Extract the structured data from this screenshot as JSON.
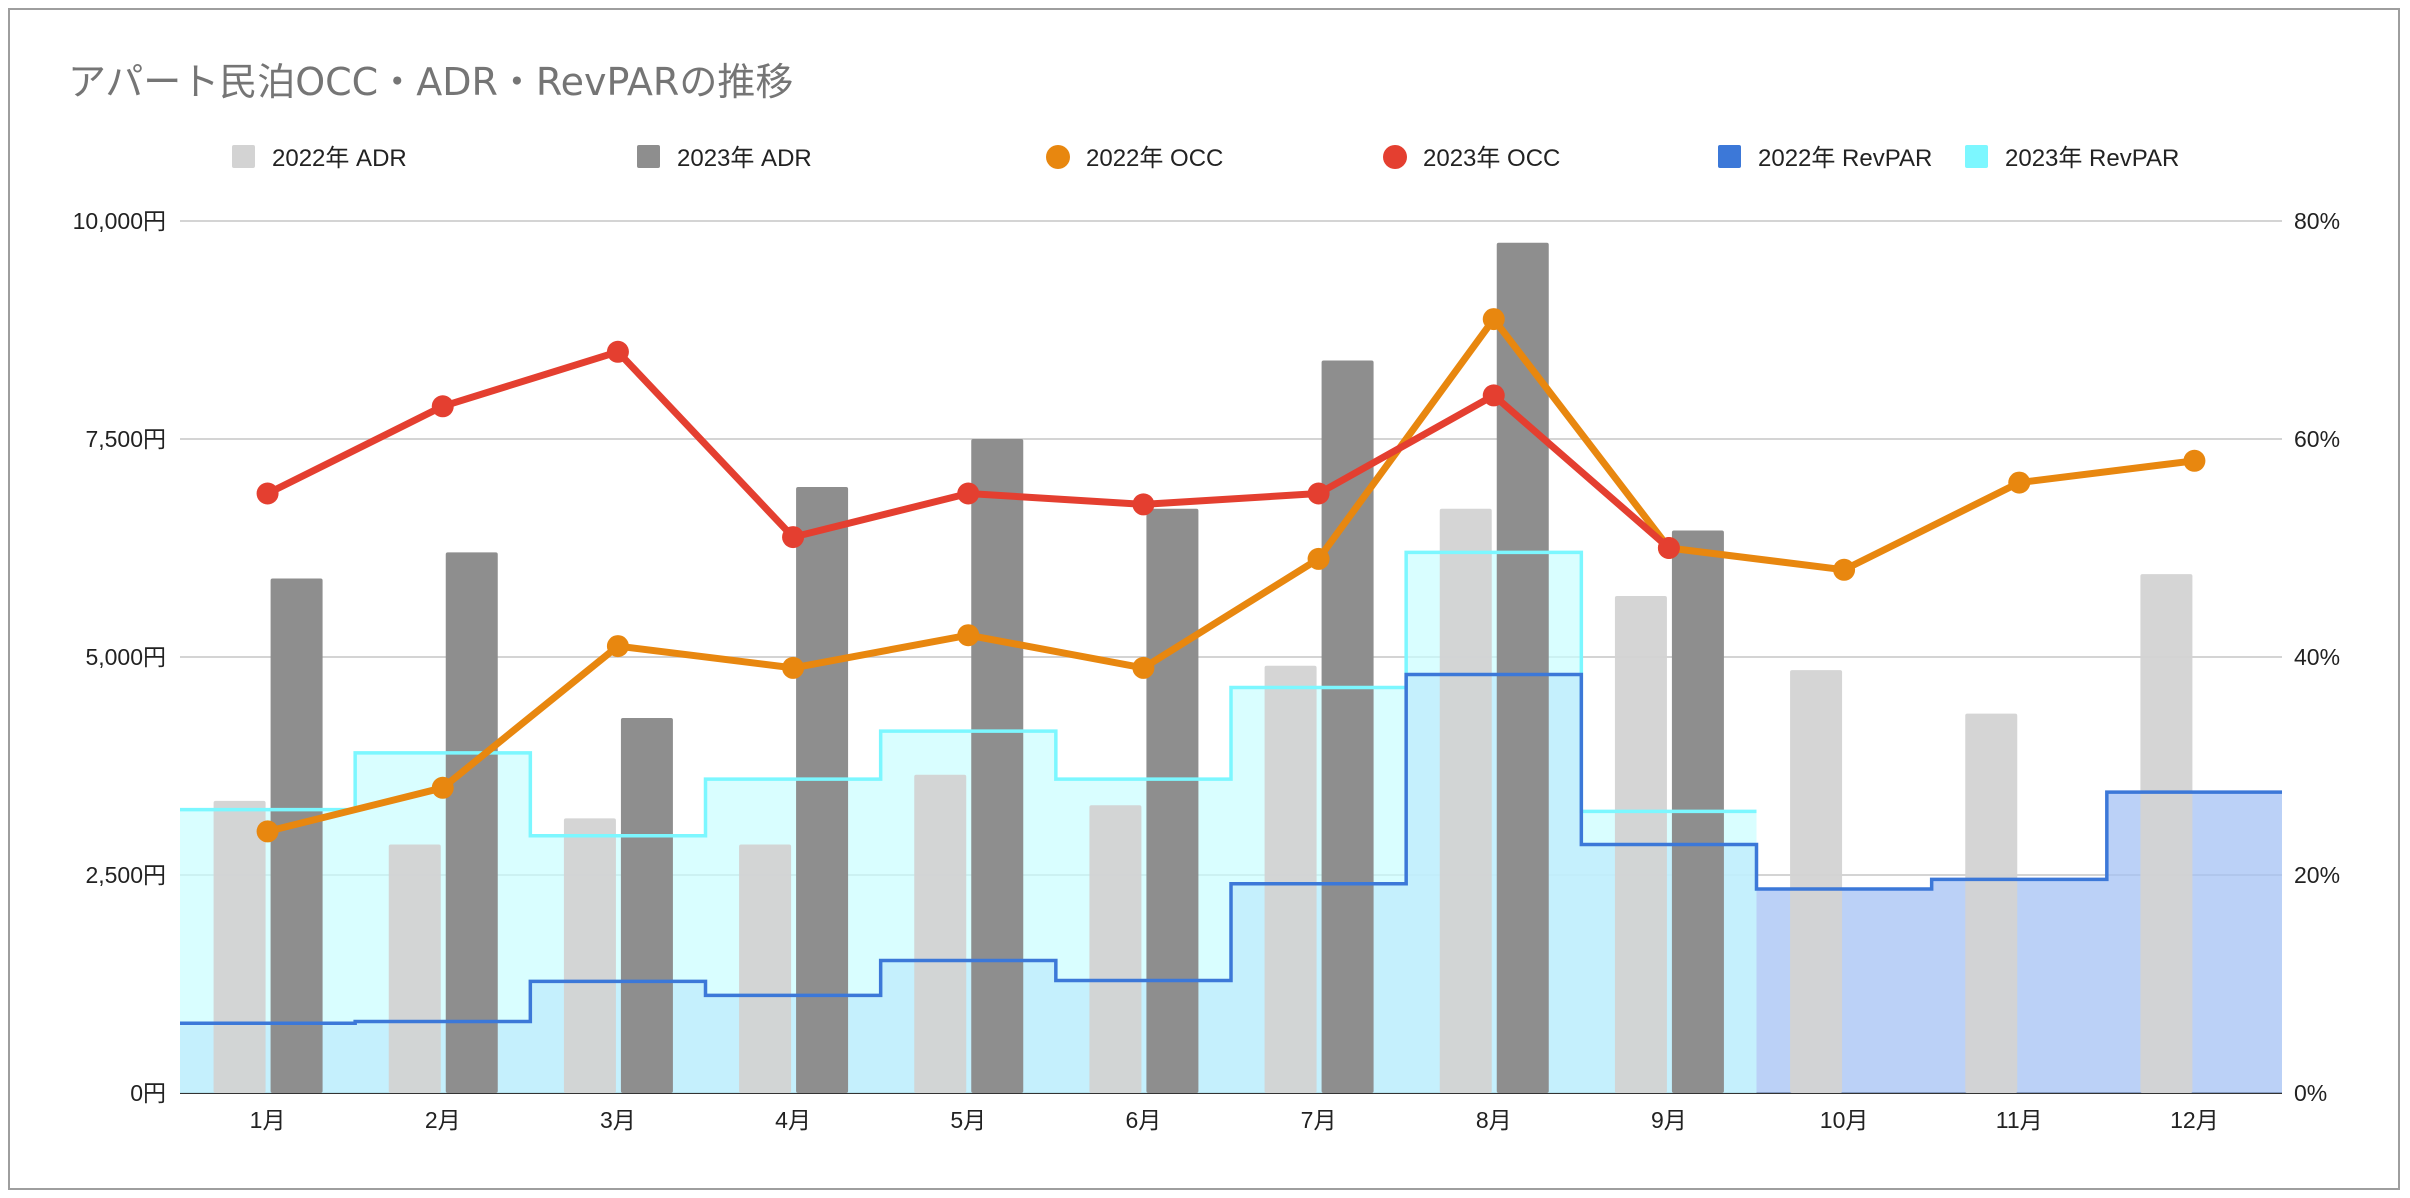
{
  "chart_data": {
    "type": "combo-bar-line-steparea",
    "title": "アパート民泊OCC・ADR・RevPARの推移",
    "categories": [
      "1月",
      "2月",
      "3月",
      "4月",
      "5月",
      "6月",
      "7月",
      "8月",
      "9月",
      "10月",
      "11月",
      "12月"
    ],
    "left_axis": {
      "min": 0,
      "max": 10000,
      "ticks": [
        0,
        2500,
        5000,
        7500,
        10000
      ],
      "tick_labels": [
        "0円",
        "2,500円",
        "5,000円",
        "7,500円",
        "10,000円"
      ]
    },
    "right_axis": {
      "min": 0,
      "max": 80,
      "ticks": [
        0,
        20,
        40,
        60,
        80
      ],
      "tick_labels": [
        "0%",
        "20%",
        "40%",
        "60%",
        "80%"
      ]
    },
    "grid": true,
    "legend_position": "top",
    "series": [
      {
        "name": "2022年 ADR",
        "kind": "bar",
        "axis": "left",
        "color": "#d3d3d3",
        "values": [
          3350,
          2850,
          3150,
          2850,
          3650,
          3300,
          4900,
          6700,
          5700,
          4850,
          4350,
          5950
        ]
      },
      {
        "name": "2023年 ADR",
        "kind": "bar",
        "axis": "left",
        "color": "#8e8e8e",
        "values": [
          5900,
          6200,
          4300,
          6950,
          7500,
          6700,
          8400,
          9750,
          6450,
          null,
          null,
          null
        ]
      },
      {
        "name": "2022年 OCC",
        "kind": "line",
        "axis": "right",
        "color": "#e8870f",
        "values": [
          24,
          28,
          41,
          39,
          42,
          39,
          49,
          71,
          50,
          48,
          56,
          58
        ]
      },
      {
        "name": "2023年 OCC",
        "kind": "line",
        "axis": "right",
        "color": "#e43f30",
        "values": [
          55,
          63,
          68,
          51,
          55,
          54,
          55,
          64,
          50,
          null,
          null,
          null
        ]
      },
      {
        "name": "2022年 RevPAR",
        "kind": "step-area",
        "axis": "left",
        "color": "#3c78d8",
        "fill": "#a4c2f4",
        "values": [
          800,
          820,
          1280,
          1120,
          1520,
          1290,
          2400,
          4800,
          2850,
          2340,
          2450,
          3450
        ]
      },
      {
        "name": "2023年 RevPAR",
        "kind": "step-area",
        "axis": "left",
        "color": "#7cf7ff",
        "fill": "#c9fdff",
        "values": [
          3250,
          3900,
          2950,
          3600,
          4150,
          3600,
          4650,
          6200,
          3230,
          null,
          null,
          null
        ]
      }
    ]
  }
}
